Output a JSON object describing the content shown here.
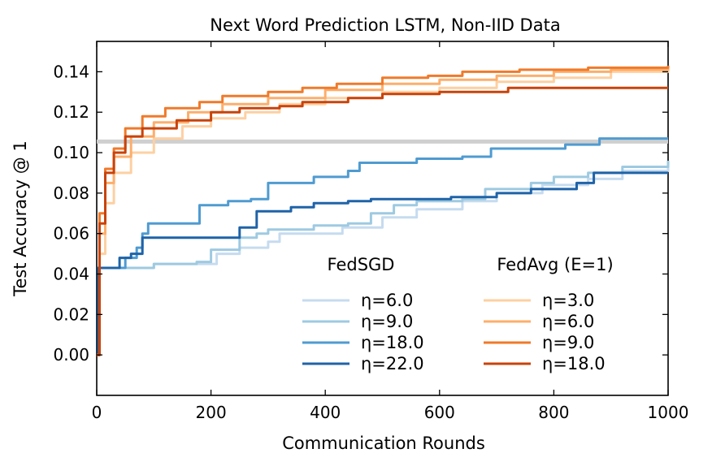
{
  "chart_data": {
    "type": "line",
    "title": "Next Word Prediction LSTM, Non-IID Data",
    "xlabel": "Communication Rounds",
    "ylabel": "Test Accuracy @ 1",
    "xlim": [
      0,
      1000
    ],
    "ylim": [
      -0.02,
      0.155
    ],
    "xticks": [
      0,
      200,
      400,
      600,
      800,
      1000
    ],
    "xtick_labels": [
      "0",
      "200",
      "400",
      "600",
      "800",
      "1000"
    ],
    "yticks": [
      0.0,
      0.02,
      0.04,
      0.06,
      0.08,
      0.1,
      0.12,
      0.14
    ],
    "ytick_labels": [
      "0.00",
      "0.02",
      "0.04",
      "0.06",
      "0.08",
      "0.10",
      "0.12",
      "0.14"
    ],
    "grid": false,
    "legend_position": "bottom-right",
    "reference_line": {
      "y": 0.1055,
      "color": "#cfcfcf"
    },
    "legend_groups": [
      {
        "title": "FedSGD",
        "series": [
          "η=6.0",
          "η=9.0",
          "η=18.0",
          "η=22.0"
        ]
      },
      {
        "title": "FedAvg (E=1)",
        "series": [
          "η=3.0",
          "η=6.0",
          "η=9.0",
          "η=18.0"
        ]
      }
    ],
    "series": [
      {
        "name": "η=6.0",
        "group": "FedSGD",
        "color": "#c6dbef",
        "points": [
          [
            0,
            0.0
          ],
          [
            3,
            0.043
          ],
          [
            60,
            0.043
          ],
          [
            100,
            0.045
          ],
          [
            180,
            0.045
          ],
          [
            210,
            0.05
          ],
          [
            250,
            0.053
          ],
          [
            300,
            0.056
          ],
          [
            320,
            0.06
          ],
          [
            430,
            0.063
          ],
          [
            500,
            0.068
          ],
          [
            560,
            0.072
          ],
          [
            640,
            0.076
          ],
          [
            700,
            0.08
          ],
          [
            780,
            0.084
          ],
          [
            860,
            0.087
          ],
          [
            920,
            0.091
          ],
          [
            1000,
            0.094
          ]
        ]
      },
      {
        "name": "η=9.0",
        "group": "FedSGD",
        "color": "#9ecae1",
        "points": [
          [
            0,
            0.0
          ],
          [
            3,
            0.043
          ],
          [
            60,
            0.043
          ],
          [
            100,
            0.045
          ],
          [
            175,
            0.046
          ],
          [
            200,
            0.052
          ],
          [
            250,
            0.058
          ],
          [
            280,
            0.06
          ],
          [
            300,
            0.062
          ],
          [
            360,
            0.062
          ],
          [
            380,
            0.064
          ],
          [
            440,
            0.065
          ],
          [
            480,
            0.07
          ],
          [
            520,
            0.074
          ],
          [
            560,
            0.076
          ],
          [
            640,
            0.077
          ],
          [
            680,
            0.082
          ],
          [
            760,
            0.085
          ],
          [
            800,
            0.088
          ],
          [
            860,
            0.09
          ],
          [
            920,
            0.093
          ],
          [
            1000,
            0.096
          ]
        ]
      },
      {
        "name": "η=18.0",
        "group": "FedSGD",
        "color": "#4f9bd1",
        "points": [
          [
            0,
            0.0
          ],
          [
            3,
            0.043
          ],
          [
            40,
            0.043
          ],
          [
            50,
            0.048
          ],
          [
            70,
            0.053
          ],
          [
            80,
            0.06
          ],
          [
            90,
            0.065
          ],
          [
            160,
            0.065
          ],
          [
            180,
            0.074
          ],
          [
            230,
            0.076
          ],
          [
            270,
            0.077
          ],
          [
            300,
            0.085
          ],
          [
            350,
            0.085
          ],
          [
            380,
            0.088
          ],
          [
            440,
            0.091
          ],
          [
            460,
            0.095
          ],
          [
            530,
            0.095
          ],
          [
            560,
            0.097
          ],
          [
            640,
            0.098
          ],
          [
            690,
            0.102
          ],
          [
            820,
            0.104
          ],
          [
            880,
            0.107
          ],
          [
            1000,
            0.107
          ]
        ]
      },
      {
        "name": "η=22.0",
        "group": "FedSGD",
        "color": "#1f63a8",
        "points": [
          [
            0,
            0.0
          ],
          [
            3,
            0.043
          ],
          [
            30,
            0.043
          ],
          [
            40,
            0.048
          ],
          [
            60,
            0.05
          ],
          [
            80,
            0.058
          ],
          [
            180,
            0.058
          ],
          [
            240,
            0.058
          ],
          [
            250,
            0.063
          ],
          [
            280,
            0.071
          ],
          [
            340,
            0.073
          ],
          [
            380,
            0.075
          ],
          [
            440,
            0.076
          ],
          [
            480,
            0.077
          ],
          [
            560,
            0.077
          ],
          [
            620,
            0.078
          ],
          [
            700,
            0.08
          ],
          [
            760,
            0.082
          ],
          [
            840,
            0.085
          ],
          [
            870,
            0.09
          ],
          [
            1000,
            0.09
          ]
        ]
      },
      {
        "name": "η=3.0",
        "group": "FedAvg (E=1)",
        "color": "#fdd0a2",
        "points": [
          [
            0,
            0.0
          ],
          [
            5,
            0.05
          ],
          [
            15,
            0.075
          ],
          [
            30,
            0.09
          ],
          [
            60,
            0.1
          ],
          [
            100,
            0.107
          ],
          [
            150,
            0.113
          ],
          [
            200,
            0.117
          ],
          [
            260,
            0.12
          ],
          [
            320,
            0.124
          ],
          [
            400,
            0.127
          ],
          [
            500,
            0.13
          ],
          [
            600,
            0.132
          ],
          [
            700,
            0.135
          ],
          [
            800,
            0.137
          ],
          [
            900,
            0.14
          ],
          [
            1000,
            0.141
          ]
        ]
      },
      {
        "name": "η=6.0",
        "group": "FedAvg (E=1)",
        "color": "#fdae6b",
        "points": [
          [
            0,
            0.0
          ],
          [
            5,
            0.06
          ],
          [
            15,
            0.085
          ],
          [
            30,
            0.098
          ],
          [
            60,
            0.108
          ],
          [
            100,
            0.115
          ],
          [
            160,
            0.12
          ],
          [
            220,
            0.124
          ],
          [
            300,
            0.127
          ],
          [
            400,
            0.131
          ],
          [
            500,
            0.134
          ],
          [
            600,
            0.136
          ],
          [
            700,
            0.138
          ],
          [
            800,
            0.14
          ],
          [
            900,
            0.141
          ],
          [
            1000,
            0.142
          ]
        ]
      },
      {
        "name": "η=9.0",
        "group": "FedAvg (E=1)",
        "color": "#f07a2a",
        "points": [
          [
            0,
            0.0
          ],
          [
            5,
            0.07
          ],
          [
            15,
            0.092
          ],
          [
            30,
            0.102
          ],
          [
            50,
            0.112
          ],
          [
            80,
            0.118
          ],
          [
            120,
            0.122
          ],
          [
            180,
            0.125
          ],
          [
            220,
            0.128
          ],
          [
            300,
            0.13
          ],
          [
            360,
            0.132
          ],
          [
            420,
            0.134
          ],
          [
            500,
            0.137
          ],
          [
            580,
            0.138
          ],
          [
            640,
            0.14
          ],
          [
            740,
            0.141
          ],
          [
            860,
            0.142
          ],
          [
            1000,
            0.143
          ]
        ]
      },
      {
        "name": "η=18.0",
        "group": "FedAvg (E=1)",
        "color": "#c9430a",
        "points": [
          [
            0,
            0.0
          ],
          [
            5,
            0.065
          ],
          [
            15,
            0.09
          ],
          [
            30,
            0.1
          ],
          [
            50,
            0.108
          ],
          [
            80,
            0.112
          ],
          [
            140,
            0.116
          ],
          [
            200,
            0.12
          ],
          [
            250,
            0.122
          ],
          [
            320,
            0.123
          ],
          [
            360,
            0.125
          ],
          [
            440,
            0.127
          ],
          [
            500,
            0.129
          ],
          [
            600,
            0.13
          ],
          [
            720,
            0.132
          ],
          [
            800,
            0.132
          ],
          [
            1000,
            0.132
          ]
        ]
      }
    ]
  }
}
